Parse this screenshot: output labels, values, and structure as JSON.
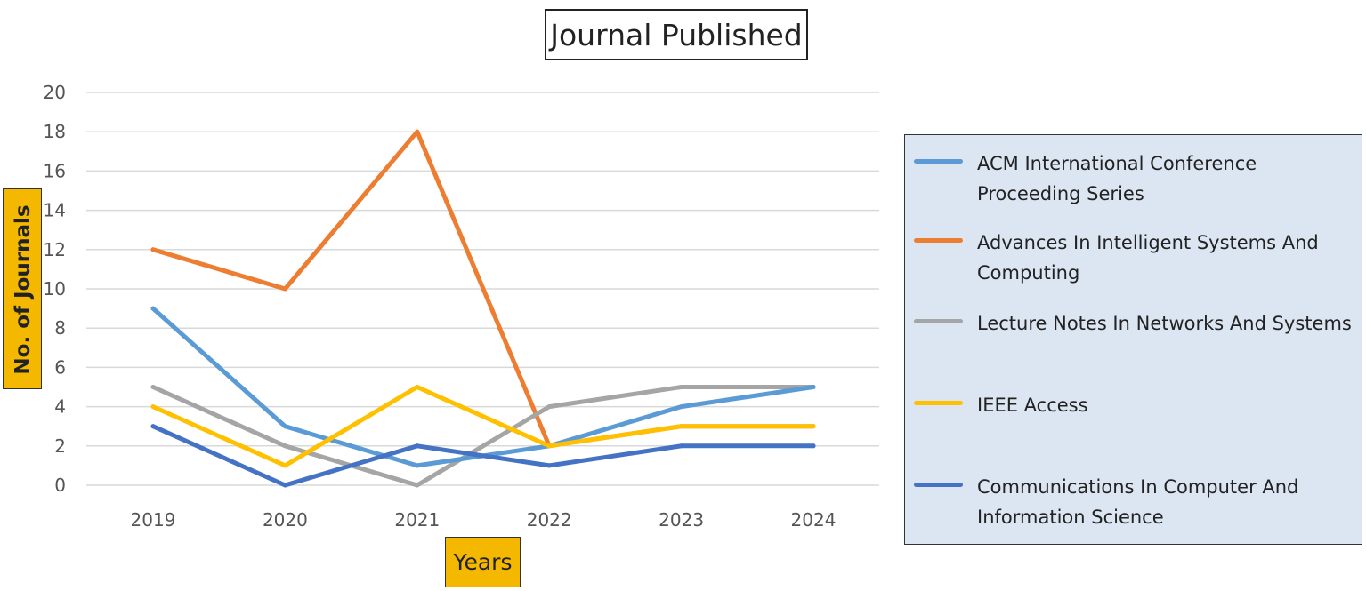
{
  "chart_data": {
    "type": "line",
    "title": "Journal Published",
    "xlabel": "Years",
    "ylabel": "No. of Journals",
    "x": [
      "2019",
      "2020",
      "2021",
      "2022",
      "2023",
      "2024"
    ],
    "ylim": [
      0,
      20
    ],
    "yticks": [
      "0",
      "2",
      "4",
      "6",
      "8",
      "10",
      "12",
      "14",
      "16",
      "18",
      "20"
    ],
    "grid": true,
    "legend_position": "right",
    "series": [
      {
        "name": "ACM International Conference Proceeding Series",
        "color": "#5b9bd5",
        "values": [
          9,
          3,
          1,
          2,
          4,
          5
        ]
      },
      {
        "name": "Advances In Intelligent Systems And Computing",
        "color": "#ed7d31",
        "values": [
          12,
          10,
          18,
          2,
          3,
          3
        ]
      },
      {
        "name": "Lecture Notes In Networks And Systems",
        "color": "#a5a5a5",
        "values": [
          5,
          2,
          0,
          4,
          5,
          5
        ]
      },
      {
        "name": "IEEE Access",
        "color": "#ffc000",
        "values": [
          4,
          1,
          5,
          2,
          3,
          3
        ]
      },
      {
        "name": "Communications In Computer And Information Science",
        "color": "#4472c4",
        "values": [
          3,
          0,
          2,
          1,
          2,
          2
        ]
      }
    ]
  }
}
